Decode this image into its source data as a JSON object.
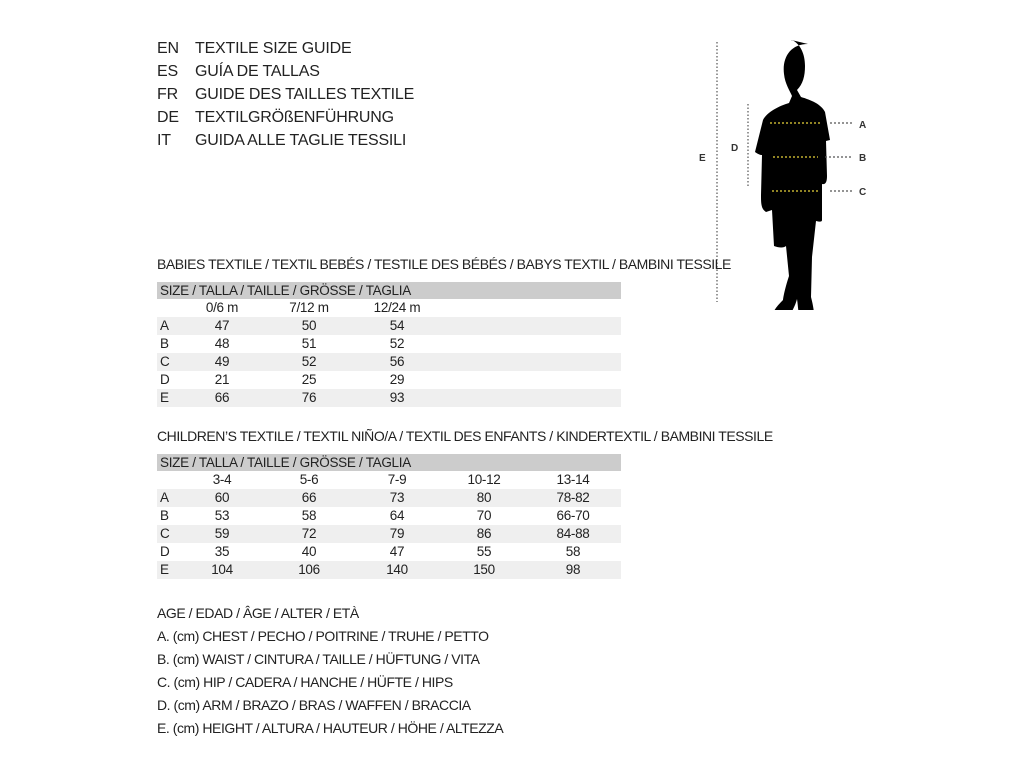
{
  "languages": [
    {
      "code": "EN",
      "title": "TEXTILE SIZE GUIDE"
    },
    {
      "code": "ES",
      "title": "GUÍA DE TALLAS"
    },
    {
      "code": "FR",
      "title": "GUIDE DES TAILLES TEXTILE"
    },
    {
      "code": "DE",
      "title": "TEXTILGRÖßENFÜHRUNG"
    },
    {
      "code": "IT",
      "title": "GUIDA ALLE TAGLIE TESSILI"
    }
  ],
  "figure": {
    "labels": {
      "a": "A",
      "b": "B",
      "c": "C",
      "d": "D",
      "e": "E"
    },
    "guide_color": "#e8d23a"
  },
  "babies": {
    "title": "BABIES TEXTILE / TEXTIL BEBÉS / TESTILE DES BÉBÉS / BABYS TEXTIL / BAMBINI TESSILE",
    "header": "SIZE / TALLA / TAILLE / GRÖSSE / TAGLIA",
    "columns": [
      "0/6 m",
      "7/12 m",
      "12/24 m"
    ],
    "rows": [
      {
        "label": "A",
        "values": [
          "47",
          "50",
          "54"
        ]
      },
      {
        "label": "B",
        "values": [
          "48",
          "51",
          "52"
        ]
      },
      {
        "label": "C",
        "values": [
          "49",
          "52",
          "56"
        ]
      },
      {
        "label": "D",
        "values": [
          "21",
          "25",
          "29"
        ]
      },
      {
        "label": "E",
        "values": [
          "66",
          "76",
          "93"
        ]
      }
    ]
  },
  "children": {
    "title": "CHILDREN’S TEXTILE / TEXTIL NIÑO/A / TEXTIL DES ENFANTS / KINDERTEXTIL / BAMBINI TESSILE",
    "header": "SIZE / TALLA / TAILLE / GRÖSSE / TAGLIA",
    "columns": [
      "3-4",
      "5-6",
      "7-9",
      "10-12",
      "13-14"
    ],
    "rows": [
      {
        "label": "A",
        "values": [
          "60",
          "66",
          "73",
          "80",
          "78-82"
        ]
      },
      {
        "label": "B",
        "values": [
          "53",
          "58",
          "64",
          "70",
          "66-70"
        ]
      },
      {
        "label": "C",
        "values": [
          "59",
          "72",
          "79",
          "86",
          "84-88"
        ]
      },
      {
        "label": "D",
        "values": [
          "35",
          "40",
          "47",
          "55",
          "58"
        ]
      },
      {
        "label": "E",
        "values": [
          "104",
          "106",
          "140",
          "150",
          "98"
        ]
      }
    ]
  },
  "legend": [
    "AGE / EDAD / ÂGE / ALTER / ETÀ",
    "A. (cm) CHEST / PECHO / POITRINE / TRUHE / PETTO",
    "B. (cm) WAIST / CINTURA / TAILLE / HÜFTUNG / VITA",
    "C. (cm) HIP / CADERA / HANCHE / HÜFTE / HIPS",
    "D. (cm) ARM / BRAZO / BRAS / WAFFEN / BRACCIA",
    "E. (cm) HEIGHT / ALTURA / HAUTEUR / HÖHE / ALTEZZA"
  ]
}
